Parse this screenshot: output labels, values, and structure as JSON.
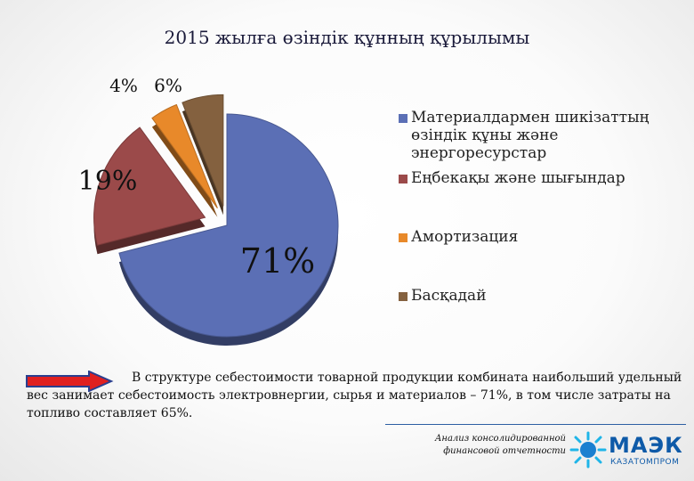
{
  "chart_data": {
    "type": "pie",
    "title": "2015 жылға өзіндік құнның құрылымы",
    "slices": [
      {
        "label": "Материалдармен шикізаттың өзіндік құны және энергоресурстар",
        "value": 71,
        "value_label": "71%",
        "color": "#5b6fb5"
      },
      {
        "label": "Еңбекақы және шығындар",
        "value": 19,
        "value_label": "19%",
        "color": "#9b4a4a"
      },
      {
        "label": "Амортизация",
        "value": 4,
        "value_label": "4%",
        "color": "#e8892a"
      },
      {
        "label": "Басқадай",
        "value": 6,
        "value_label": "6%",
        "color": "#84613f"
      }
    ],
    "legend_position": "right"
  },
  "caption": "В структуре себестоимости товарной продукции комбината наибольший удельный вес занимает себестоимость электровнергии, сырья и материалов – 71%, в том числе затраты на топливо составляет 65%.",
  "footer": {
    "source_text": "Анализ консолидированной финансовой отчетности",
    "logo_main": "МАЭК",
    "logo_sub": "КАЗАТОМПРОМ"
  }
}
